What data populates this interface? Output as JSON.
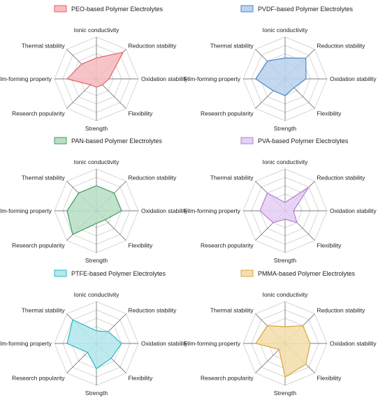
{
  "chart_data": [
    {
      "type": "radar",
      "legend": "PEO-based Polymer Electrolytes",
      "color": "#e8606a",
      "fill": "#f6c3c6",
      "axes": [
        "Ionic conductivity",
        "Reduction stability",
        "Oxidation stability",
        "Flexibility",
        "Strength",
        "Research popularity",
        "Film-forming property",
        "Thermal stability"
      ],
      "values": [
        2.5,
        4.5,
        1.5,
        1,
        1,
        1,
        3.5,
        2.5
      ],
      "rmax": 5
    },
    {
      "type": "radar",
      "legend": "PVDF-based Polymer Electrolytes",
      "color": "#4a86c8",
      "fill": "#c3d8f0",
      "axes": [
        "Ionic conductivity",
        "Reduction stability",
        "Oxidation stability",
        "Flexibility",
        "Strength",
        "Research popularity",
        "Film-forming property",
        "Thermal stability"
      ],
      "values": [
        2.5,
        3.5,
        2.5,
        1.5,
        2,
        2,
        3.5,
        3
      ],
      "rmax": 5
    },
    {
      "type": "radar",
      "legend": "PAN-based Polymer Electrolytes",
      "color": "#3b9a5e",
      "fill": "#c2e3cd",
      "axes": [
        "Ionic conductivity",
        "Reduction stability",
        "Oxidation stability",
        "Flexibility",
        "Strength",
        "Research popularity",
        "Film-forming property",
        "Thermal stability"
      ],
      "values": [
        3,
        3,
        3,
        1.5,
        1.5,
        4,
        3.5,
        3
      ],
      "rmax": 5
    },
    {
      "type": "radar",
      "legend": "PVA-based Polymer Electrolytes",
      "color": "#b47fd6",
      "fill": "#e9d5f5",
      "axes": [
        "Ionic conductivity",
        "Reduction stability",
        "Oxidation stability",
        "Flexibility",
        "Strength",
        "Research popularity",
        "Film-forming property",
        "Thermal stability"
      ],
      "values": [
        1,
        4,
        1,
        2,
        1,
        2,
        3,
        3
      ],
      "rmax": 5
    },
    {
      "type": "radar",
      "legend": "PTFE-based Polymer Electrolytes",
      "color": "#25b9c4",
      "fill": "#bfeaee",
      "axes": [
        "Ionic conductivity",
        "Reduction stability",
        "Oxidation stability",
        "Flexibility",
        "Strength",
        "Research popularity",
        "Film-forming property",
        "Thermal stability"
      ],
      "values": [
        1.5,
        2,
        3,
        2.5,
        3,
        1.5,
        3.5,
        4
      ],
      "rmax": 5
    },
    {
      "type": "radar",
      "legend": "PMMA-based Polymer Electrolytes",
      "color": "#d9a83a",
      "fill": "#f5e2b5",
      "axes": [
        "Ionic conductivity",
        "Reduction stability",
        "Oxidation stability",
        "Flexibility",
        "Strength",
        "Research popularity",
        "Film-forming property",
        "Thermal stability"
      ],
      "values": [
        2,
        3,
        3,
        3.5,
        4,
        1,
        3.5,
        3
      ],
      "rmax": 5
    }
  ]
}
